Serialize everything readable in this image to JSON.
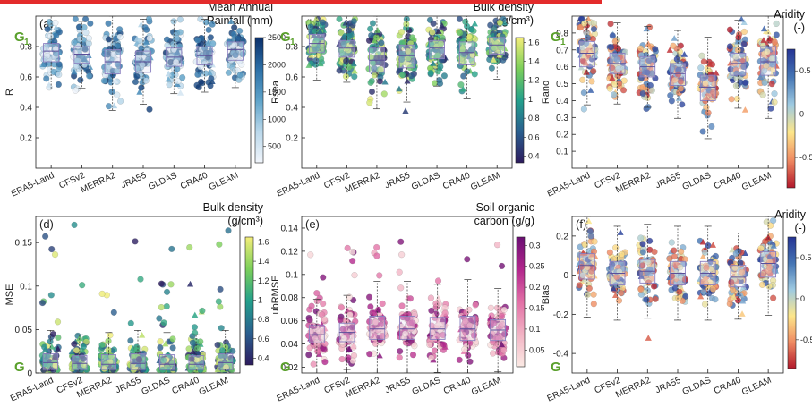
{
  "chart_data": [
    {
      "panel_label": "(a)",
      "type": "scatter",
      "subtype": "strip-box",
      "corner_label": "G",
      "corner_sub": "1",
      "ylabel": "R",
      "ylim": [
        0,
        1.0
      ],
      "yticks": [
        0.2,
        0.4,
        0.6,
        0.8
      ],
      "categories": [
        "ERA5-Land",
        "CFSv2",
        "MERRA2",
        "JRA55",
        "GLDAS",
        "CRA40",
        "GLEAM"
      ],
      "box_medians": [
        0.77,
        0.75,
        0.7,
        0.7,
        0.73,
        0.74,
        0.78
      ],
      "box_q1": [
        0.7,
        0.69,
        0.62,
        0.63,
        0.67,
        0.68,
        0.71
      ],
      "box_q3": [
        0.82,
        0.8,
        0.78,
        0.77,
        0.79,
        0.8,
        0.83
      ],
      "spread": [
        0.18,
        0.17,
        0.22,
        0.2,
        0.18,
        0.18,
        0.16
      ],
      "colorbar": {
        "title_lines": [
          "Mean Annual",
          "Rainfall (mm)"
        ],
        "ticks": [
          "2500",
          "2000",
          "1500",
          "1000",
          "500"
        ],
        "range": [
          200,
          2500
        ],
        "colors": [
          "#f1f5fb",
          "#b9d7ea",
          "#5ea3c9",
          "#2c6fa6",
          "#0b2f6b"
        ]
      }
    },
    {
      "panel_label": "(b)",
      "type": "scatter",
      "subtype": "strip-box",
      "corner_label": "G",
      "corner_sub": "1",
      "ylabel": "Rsea",
      "ylim": [
        0,
        1.0
      ],
      "yticks": [
        0.2,
        0.4,
        0.6,
        0.8
      ],
      "categories": [
        "ERA5-Land",
        "CFSv2",
        "MERRA2",
        "JRA55",
        "GLDAS",
        "CRA40",
        "GLEAM"
      ],
      "box_medians": [
        0.82,
        0.79,
        0.71,
        0.74,
        0.79,
        0.76,
        0.81
      ],
      "box_q1": [
        0.76,
        0.73,
        0.63,
        0.66,
        0.72,
        0.68,
        0.75
      ],
      "box_q3": [
        0.88,
        0.84,
        0.79,
        0.81,
        0.84,
        0.83,
        0.86
      ],
      "spread": [
        0.18,
        0.17,
        0.22,
        0.2,
        0.18,
        0.19,
        0.16
      ],
      "colorbar": {
        "title_lines": [
          "Bulk density",
          "(g/cm³)"
        ],
        "ticks": [
          "1.6",
          "1.4",
          "1.2",
          "1",
          "0.8",
          "0.6",
          "0.4"
        ],
        "range": [
          0.33,
          1.65
        ],
        "colors": [
          "#2d1b5e",
          "#2a5f8f",
          "#23a08c",
          "#7bcf5a",
          "#f4ee7a"
        ]
      }
    },
    {
      "panel_label": "(c)",
      "type": "scatter",
      "subtype": "strip-box",
      "corner_label": "G",
      "corner_sub": "1",
      "ylabel": "Rano",
      "ylim": [
        0,
        0.9
      ],
      "yticks": [
        0.1,
        0.2,
        0.3,
        0.4,
        0.5,
        0.6,
        0.7,
        0.8
      ],
      "categories": [
        "ERA5-Land",
        "CFSv2",
        "MERRA2",
        "JRA55",
        "GLDAS",
        "CRA40",
        "GLEAM"
      ],
      "box_medians": [
        0.68,
        0.62,
        0.6,
        0.56,
        0.48,
        0.62,
        0.63
      ],
      "box_q1": [
        0.6,
        0.56,
        0.54,
        0.49,
        0.4,
        0.55,
        0.55
      ],
      "box_q3": [
        0.75,
        0.68,
        0.66,
        0.62,
        0.55,
        0.68,
        0.72
      ],
      "spread": [
        0.2,
        0.17,
        0.17,
        0.18,
        0.18,
        0.18,
        0.2
      ],
      "colorbar": {
        "title_lines": [
          "Aridity",
          "(-)"
        ],
        "ticks": [
          "-0.5",
          "0",
          "0.5"
        ],
        "range": [
          -0.85,
          0.75
        ],
        "colors": [
          "#b2182b",
          "#ef8a62",
          "#fde68a",
          "#9ecae1",
          "#4575b4",
          "#253494"
        ]
      }
    },
    {
      "panel_label": "(d)",
      "type": "scatter",
      "subtype": "strip-box",
      "corner_label": "G",
      "corner_sub": "",
      "ylabel": "MSE",
      "ylim": [
        0,
        0.18
      ],
      "yticks": [
        0,
        0.05,
        0.1,
        0.15
      ],
      "categories": [
        "ERA5-Land",
        "CFSv2",
        "MERRA2",
        "JRA55",
        "GLDAS",
        "CRA40",
        "GLEAM"
      ],
      "box_medians": [
        0.012,
        0.011,
        0.01,
        0.011,
        0.01,
        0.01,
        0.012
      ],
      "box_q1": [
        0.004,
        0.004,
        0.004,
        0.004,
        0.004,
        0.004,
        0.004
      ],
      "box_q3": [
        0.022,
        0.02,
        0.021,
        0.022,
        0.021,
        0.02,
        0.022
      ],
      "spread": [
        0.05,
        0.05,
        0.05,
        0.05,
        0.05,
        0.05,
        0.05
      ],
      "colorbar": {
        "title_lines": [
          "Bulk density",
          "(g/cm³)"
        ],
        "ticks": [
          "1.6",
          "1.4",
          "1.2",
          "1",
          "0.8",
          "0.6",
          "0.4"
        ],
        "range": [
          0.33,
          1.65
        ],
        "colors": [
          "#2d1b5e",
          "#2a5f8f",
          "#23a08c",
          "#7bcf5a",
          "#f4ee7a"
        ]
      }
    },
    {
      "panel_label": "(e)",
      "type": "scatter",
      "subtype": "strip-box",
      "corner_label": "G",
      "corner_sub": "",
      "ylabel": "ubRMSE",
      "ylim": [
        0.015,
        0.15
      ],
      "yticks": [
        0.02,
        0.04,
        0.06,
        0.08,
        0.1,
        0.12,
        0.14
      ],
      "categories": [
        "ERA5-Land",
        "CFSv2",
        "MERRA2",
        "JRA55",
        "GLDAS",
        "CRA40",
        "GLEAM"
      ],
      "box_medians": [
        0.048,
        0.05,
        0.053,
        0.053,
        0.053,
        0.053,
        0.052
      ],
      "box_q1": [
        0.041,
        0.042,
        0.044,
        0.044,
        0.044,
        0.043,
        0.043
      ],
      "box_q3": [
        0.056,
        0.058,
        0.064,
        0.064,
        0.063,
        0.064,
        0.061
      ],
      "spread": [
        0.03,
        0.03,
        0.03,
        0.03,
        0.03,
        0.03,
        0.03
      ],
      "colorbar": {
        "title_lines": [
          "Soil organic",
          "carbon (g/g)"
        ],
        "ticks": [
          "0.3",
          "0.25",
          "0.2",
          "0.15",
          "0.1",
          "0.05"
        ],
        "range": [
          0.01,
          0.32
        ],
        "colors": [
          "#fbeae4",
          "#f2b3c4",
          "#e270a6",
          "#b2268c",
          "#6a0f73"
        ]
      }
    },
    {
      "panel_label": "(f)",
      "type": "scatter",
      "subtype": "strip-box",
      "corner_label": "G",
      "corner_sub": "",
      "ylabel": "Bias",
      "ylim": [
        -0.5,
        0.3
      ],
      "yticks": [
        -0.4,
        -0.2,
        0,
        0.2
      ],
      "categories": [
        "ERA5-Land",
        "CFSv2",
        "MERRA2",
        "JRA55",
        "GLDAS",
        "CRA40",
        "GLEAM"
      ],
      "box_medians": [
        0.05,
        0.01,
        0.02,
        0.01,
        0.01,
        -0.01,
        0.06
      ],
      "box_q1": [
        -0.02,
        -0.05,
        -0.04,
        -0.05,
        -0.05,
        -0.06,
        -0.01
      ],
      "box_q3": [
        0.11,
        0.07,
        0.08,
        0.07,
        0.07,
        0.05,
        0.12
      ],
      "spread": [
        0.14,
        0.14,
        0.13,
        0.13,
        0.13,
        0.13,
        0.14
      ],
      "colorbar": {
        "title_lines": [
          "Aridity",
          "(-)"
        ],
        "ticks": [
          "-0.5",
          "0",
          "0.5"
        ],
        "range": [
          -0.85,
          0.75
        ],
        "colors": [
          "#b2182b",
          "#ef8a62",
          "#fde68a",
          "#9ecae1",
          "#4575b4",
          "#253494"
        ]
      }
    }
  ]
}
